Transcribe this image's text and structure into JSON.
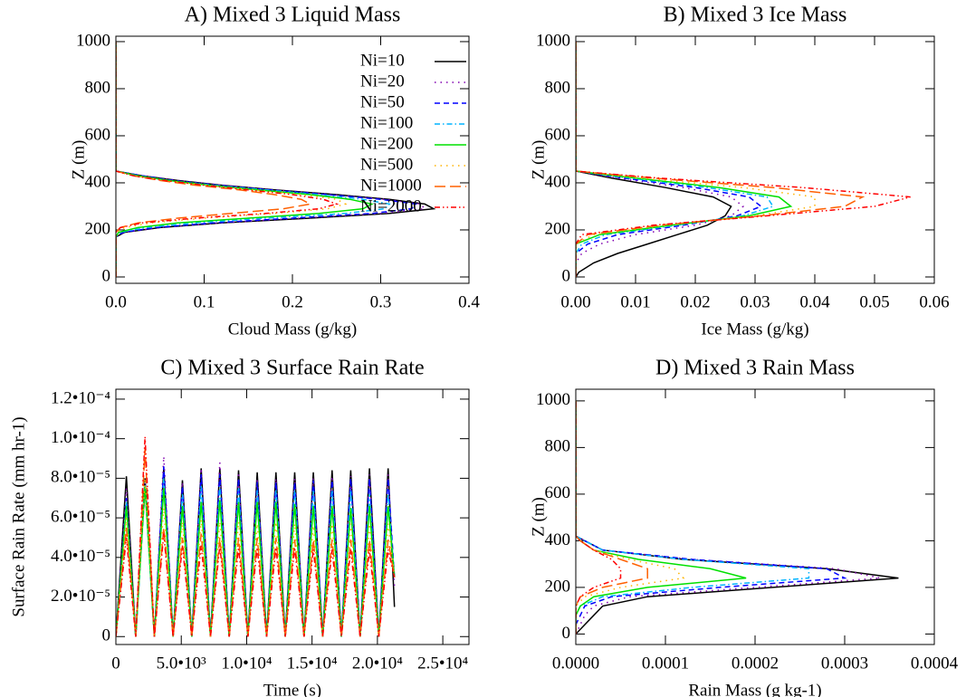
{
  "chart_data": [
    {
      "type": "profile",
      "title": "A) Mixed 3 Liquid Mass",
      "xlabel": "Cloud Mass (g/kg)",
      "ylabel": "Z (m)",
      "xlim": [
        0,
        0.4
      ],
      "xticks": [
        {
          "value": 0,
          "label": "0.0"
        },
        0.1,
        0.2,
        0.3,
        0.4
      ],
      "ylim": [
        -27,
        1023
      ],
      "yticks": [
        0,
        200,
        400,
        600,
        800,
        1000
      ],
      "legend": "upper right",
      "y": [
        0,
        170,
        190,
        210,
        230,
        250,
        270,
        290,
        310,
        330,
        350,
        370,
        390,
        410,
        430,
        450,
        1000
      ],
      "series": [
        {
          "name": "Ni=10",
          "color": "#000000",
          "dash": "solid",
          "values": [
            0,
            0,
            0.01,
            0.05,
            0.12,
            0.22,
            0.31,
            0.36,
            0.35,
            0.31,
            0.25,
            0.18,
            0.12,
            0.07,
            0.03,
            0,
            0
          ]
        },
        {
          "name": "Ni=20",
          "color": "#8000b0",
          "dash": "dotted",
          "values": [
            0,
            0,
            0.01,
            0.05,
            0.12,
            0.21,
            0.3,
            0.35,
            0.345,
            0.305,
            0.245,
            0.18,
            0.12,
            0.07,
            0.03,
            0,
            0
          ]
        },
        {
          "name": "Ni=50",
          "color": "#0000ff",
          "dash": "dashed",
          "values": [
            0,
            0,
            0.008,
            0.045,
            0.11,
            0.2,
            0.29,
            0.335,
            0.34,
            0.3,
            0.24,
            0.175,
            0.115,
            0.065,
            0.03,
            0,
            0
          ]
        },
        {
          "name": "Ni=100",
          "color": "#00b4ff",
          "dash": "dash-dot",
          "values": [
            0,
            0,
            0.005,
            0.035,
            0.09,
            0.17,
            0.26,
            0.305,
            0.31,
            0.28,
            0.23,
            0.17,
            0.11,
            0.06,
            0.025,
            0,
            0
          ]
        },
        {
          "name": "Ni=200",
          "color": "#00e000",
          "dash": "solid",
          "values": [
            0,
            0,
            0.003,
            0.025,
            0.07,
            0.15,
            0.23,
            0.28,
            0.29,
            0.265,
            0.22,
            0.16,
            0.105,
            0.06,
            0.025,
            0,
            0
          ]
        },
        {
          "name": "Ni=500",
          "color": "#ffb400",
          "dash": "dotted",
          "values": [
            0,
            0,
            0,
            0.01,
            0.04,
            0.1,
            0.18,
            0.24,
            0.26,
            0.25,
            0.21,
            0.155,
            0.1,
            0.055,
            0.02,
            0,
            0
          ]
        },
        {
          "name": "Ni=1000",
          "color": "#ff6000",
          "dash": "long-dash",
          "values": [
            0,
            0,
            0,
            0.005,
            0.025,
            0.07,
            0.13,
            0.19,
            0.22,
            0.21,
            0.18,
            0.14,
            0.09,
            0.05,
            0.02,
            0,
            0
          ]
        },
        {
          "name": "Ni=2000",
          "color": "#ff0000",
          "dash": "dash-dot-dot",
          "values": [
            0,
            0,
            0,
            0.005,
            0.03,
            0.09,
            0.17,
            0.23,
            0.25,
            0.235,
            0.2,
            0.15,
            0.1,
            0.055,
            0.02,
            0,
            0
          ]
        }
      ]
    },
    {
      "type": "profile",
      "title": "B) Mixed 3 Ice Mass",
      "xlabel": "Ice Mass (g/kg)",
      "ylabel": "Z (m)",
      "xlim": [
        0,
        0.06
      ],
      "xticks": [
        {
          "value": 0,
          "label": "0.00"
        },
        0.01,
        0.02,
        0.03,
        0.04,
        0.05,
        0.06
      ],
      "ylim": [
        -27,
        1023
      ],
      "yticks": [
        0,
        200,
        400,
        600,
        800,
        1000
      ],
      "y": [
        0,
        20,
        60,
        100,
        140,
        180,
        220,
        260,
        300,
        340,
        380,
        420,
        450,
        1000
      ],
      "series": [
        {
          "color": "#000000",
          "dash": "solid",
          "values": [
            0,
            0.0005,
            0.003,
            0.007,
            0.012,
            0.017,
            0.022,
            0.025,
            0.026,
            0.023,
            0.015,
            0.006,
            0,
            0
          ]
        },
        {
          "color": "#8000b0",
          "dash": "dotted",
          "values": [
            0,
            0,
            0,
            0.001,
            0.004,
            0.01,
            0.02,
            0.026,
            0.028,
            0.026,
            0.018,
            0.007,
            0,
            0
          ]
        },
        {
          "color": "#0000ff",
          "dash": "dashed",
          "values": [
            0,
            0,
            0,
            0,
            0.002,
            0.007,
            0.018,
            0.027,
            0.031,
            0.029,
            0.02,
            0.008,
            0,
            0
          ]
        },
        {
          "color": "#00b4ff",
          "dash": "dash-dot",
          "values": [
            0,
            0,
            0,
            0,
            0.001,
            0.005,
            0.017,
            0.028,
            0.033,
            0.032,
            0.022,
            0.009,
            0,
            0
          ]
        },
        {
          "color": "#00e000",
          "dash": "solid",
          "values": [
            0,
            0,
            0,
            0,
            0,
            0.004,
            0.016,
            0.029,
            0.036,
            0.034,
            0.024,
            0.01,
            0,
            0
          ]
        },
        {
          "color": "#ffb400",
          "dash": "dotted",
          "values": [
            0,
            0,
            0,
            0,
            0,
            0.003,
            0.015,
            0.03,
            0.04,
            0.04,
            0.028,
            0.011,
            0,
            0
          ]
        },
        {
          "color": "#ff6000",
          "dash": "long-dash",
          "values": [
            0,
            0,
            0,
            0,
            0,
            0.002,
            0.014,
            0.031,
            0.045,
            0.048,
            0.033,
            0.013,
            0,
            0
          ]
        },
        {
          "color": "#ff0000",
          "dash": "dash-dot-dot",
          "values": [
            0,
            0,
            0,
            0,
            0,
            0.001,
            0.013,
            0.032,
            0.05,
            0.056,
            0.038,
            0.014,
            0,
            0
          ]
        }
      ]
    },
    {
      "type": "line",
      "title": "C) Mixed 3 Surface Rain Rate",
      "xlabel": "Time (s)",
      "ylabel": "Surface Rain Rate (mm hr-1)",
      "xlim": [
        0,
        27000
      ],
      "xticks": [
        0,
        {
          "value": 5000,
          "label": "5.0•10³"
        },
        {
          "value": 10000,
          "label": "1.0•10⁴"
        },
        {
          "value": 15000,
          "label": "1.5•10⁴"
        },
        {
          "value": 20000,
          "label": "2.0•10⁴"
        },
        {
          "value": 25000,
          "label": "2.5•10⁴"
        }
      ],
      "ylim": [
        -4e-06,
        0.000125
      ],
      "yticks": [
        0,
        {
          "value": 2e-05,
          "label": "2.0•10⁻⁵"
        },
        {
          "value": 4e-05,
          "label": "4.0•10⁻⁵"
        },
        {
          "value": 6e-05,
          "label": "6.0•10⁻⁵"
        },
        {
          "value": 8e-05,
          "label": "8.0•10⁻⁵"
        },
        {
          "value": 0.0001,
          "label": "1.0•10⁻⁴"
        },
        {
          "value": 0.00012,
          "label": "1.2•10⁻⁴"
        }
      ],
      "x": [
        0,
        800,
        1515,
        2230,
        2945,
        3660,
        4375,
        5090,
        5805,
        6520,
        7235,
        7950,
        8665,
        9380,
        10095,
        10810,
        11525,
        12240,
        12955,
        13670,
        14385,
        15100,
        15815,
        16530,
        17245,
        17960,
        18675,
        19390,
        20105,
        20820,
        21300
      ],
      "series": [
        {
          "color": "#000000",
          "dash": "solid",
          "values": [
            0,
            8.1e-05,
            0,
            8e-05,
            0,
            8.5e-05,
            0,
            7.9e-05,
            0,
            8.5e-05,
            0,
            8.5e-05,
            0,
            8.4e-05,
            0,
            8.3e-05,
            0,
            8.3e-05,
            0,
            8.3e-05,
            0,
            8.3e-05,
            0,
            8.4e-05,
            0,
            8.4e-05,
            0,
            8.5e-05,
            0,
            8.5e-05,
            1.5e-05
          ]
        },
        {
          "color": "#8000b0",
          "dash": "dotted",
          "values": [
            0,
            7.5e-05,
            0,
            7.8e-05,
            0,
            9.1e-05,
            0,
            7.8e-05,
            0,
            8.5e-05,
            0,
            8.8e-05,
            0,
            8.3e-05,
            0,
            8e-05,
            0,
            8e-05,
            0,
            8e-05,
            0,
            8e-05,
            0,
            8.1e-05,
            0,
            8.1e-05,
            0,
            8.2e-05,
            0,
            8.2e-05,
            2.5e-05
          ]
        },
        {
          "color": "#0000ff",
          "dash": "dashed",
          "values": [
            0,
            7e-05,
            0,
            7.5e-05,
            0,
            8.6e-05,
            0,
            7.6e-05,
            0,
            8.2e-05,
            0,
            8.2e-05,
            0,
            8e-05,
            0,
            7.8e-05,
            0,
            7.8e-05,
            0,
            7.8e-05,
            0,
            7.9e-05,
            0,
            7.9e-05,
            0,
            8e-05,
            0,
            8e-05,
            0,
            8e-05,
            3e-05
          ]
        },
        {
          "color": "#00b4ff",
          "dash": "dash-dot",
          "values": [
            0,
            6.8e-05,
            0,
            7.8e-05,
            0,
            8e-05,
            0,
            7.2e-05,
            0,
            7.6e-05,
            0,
            7.6e-05,
            0,
            7.5e-05,
            0,
            7.4e-05,
            0,
            7.4e-05,
            0,
            7.4e-05,
            0,
            7.4e-05,
            0,
            7.4e-05,
            0,
            7.4e-05,
            0,
            7.2e-05,
            0,
            7.2e-05,
            3e-05
          ]
        },
        {
          "color": "#00e000",
          "dash": "solid",
          "values": [
            0,
            6.6e-05,
            0,
            7.6e-05,
            0,
            7.5e-05,
            0,
            6.6e-05,
            0,
            6.8e-05,
            0,
            6.9e-05,
            0,
            6.8e-05,
            0,
            6.8e-05,
            0,
            6.8e-05,
            0,
            6.7e-05,
            0,
            6.6e-05,
            0,
            6.6e-05,
            0,
            6.5e-05,
            0,
            6.6e-05,
            0,
            6.6e-05,
            3e-05
          ]
        },
        {
          "color": "#ffb400",
          "dash": "dotted",
          "values": [
            0,
            6e-05,
            0,
            8e-05,
            0,
            6.5e-05,
            0,
            5.8e-05,
            0,
            5.9e-05,
            0,
            5.8e-05,
            0,
            5.8e-05,
            0,
            5.7e-05,
            0,
            5.8e-05,
            0,
            5.7e-05,
            0,
            5.6e-05,
            0,
            5.7e-05,
            0,
            5.7e-05,
            0,
            5.7e-05,
            0,
            5.7e-05,
            3e-05
          ]
        },
        {
          "color": "#ff6000",
          "dash": "long-dash",
          "values": [
            0,
            5.5e-05,
            0,
            9.5e-05,
            0,
            5.5e-05,
            0,
            5e-05,
            0,
            5.2e-05,
            0,
            5e-05,
            0,
            5e-05,
            0,
            5e-05,
            0,
            5e-05,
            0,
            4.9e-05,
            0,
            4.9e-05,
            0,
            4.9e-05,
            0,
            4.9e-05,
            0,
            4.9e-05,
            0,
            4.9e-05,
            3e-05
          ]
        },
        {
          "color": "#ff0000",
          "dash": "dash-dot-dot",
          "values": [
            0,
            5e-05,
            0,
            0.000101,
            0,
            5.2e-05,
            0,
            4.6e-05,
            0,
            4.6e-05,
            0,
            4.6e-05,
            0,
            4.5e-05,
            0,
            4.5e-05,
            0,
            4.5e-05,
            0,
            4.5e-05,
            0,
            4.4e-05,
            0,
            4.4e-05,
            0,
            4.4e-05,
            0,
            4.4e-05,
            0,
            4.4e-05,
            3e-05
          ]
        }
      ]
    },
    {
      "type": "profile",
      "title": "D) Mixed 3 Rain Mass",
      "xlabel": "Rain Mass (g kg-1)",
      "ylabel": "Z (m)",
      "xlim": [
        0,
        0.0004
      ],
      "xticks": [
        {
          "value": 0,
          "label": "0.0000"
        },
        0.0001,
        0.0002,
        0.0003,
        0.0004
      ],
      "ylim": [
        -45,
        1050
      ],
      "yticks": [
        0,
        200,
        400,
        600,
        800,
        1000
      ],
      "y": [
        0,
        40,
        80,
        120,
        160,
        200,
        240,
        280,
        320,
        360,
        400,
        420,
        1000
      ],
      "series": [
        {
          "color": "#000000",
          "dash": "solid",
          "values": [
            0,
            1e-05,
            2e-05,
            3e-05,
            8e-05,
            0.00022,
            0.00036,
            0.00028,
            0.00012,
            3e-05,
            1e-05,
            0,
            0
          ]
        },
        {
          "color": "#8000b0",
          "dash": "dotted",
          "values": [
            0,
            5e-06,
            1e-05,
            2e-05,
            6e-05,
            0.0002,
            0.00034,
            0.00029,
            0.00013,
            3e-05,
            1e-05,
            0,
            0
          ]
        },
        {
          "color": "#0000ff",
          "dash": "dashed",
          "values": [
            0,
            0,
            5e-06,
            1e-05,
            4e-05,
            0.00016,
            0.0003,
            0.00028,
            0.00013,
            3e-05,
            1e-05,
            0,
            0
          ]
        },
        {
          "color": "#00b4ff",
          "dash": "dash-dot",
          "values": [
            0,
            0,
            0,
            5e-06,
            3e-05,
            0.00013,
            0.00026,
            0.00026,
            0.00012,
            3e-05,
            1e-05,
            0,
            0
          ]
        },
        {
          "color": "#00e000",
          "dash": "solid",
          "values": [
            0,
            0,
            0,
            5e-06,
            2e-05,
            8e-05,
            0.00019,
            0.00015,
            7e-05,
            2e-05,
            5e-06,
            0,
            0
          ]
        },
        {
          "color": "#ffb400",
          "dash": "dotted",
          "values": [
            0,
            0,
            0,
            0,
            1e-05,
            5e-05,
            0.00012,
            0.00011,
            6e-05,
            2e-05,
            5e-06,
            0,
            0
          ]
        },
        {
          "color": "#ff6000",
          "dash": "long-dash",
          "values": [
            0,
            0,
            0,
            0,
            5e-06,
            3e-05,
            8e-05,
            8e-05,
            5e-05,
            2e-05,
            5e-06,
            0,
            0
          ]
        },
        {
          "color": "#ff0000",
          "dash": "dash-dot-dot",
          "values": [
            0,
            0,
            0,
            0,
            5e-06,
            2e-05,
            5e-05,
            5e-05,
            4e-05,
            2e-05,
            5e-06,
            0,
            0
          ]
        }
      ]
    }
  ]
}
